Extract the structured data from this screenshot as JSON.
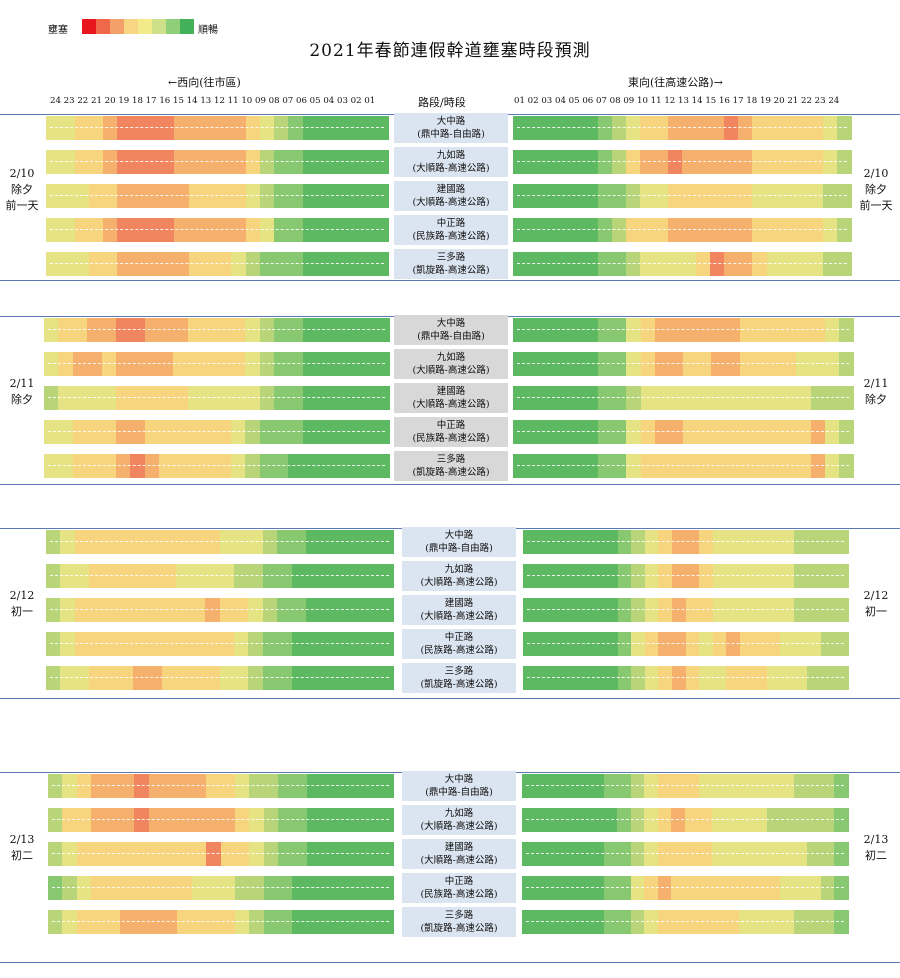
{
  "title": "2021年春節連假幹道壅塞時段預測",
  "legend": {
    "left_label": "壅塞",
    "right_label": "順暢",
    "colors": [
      "#e8161d",
      "#f0684a",
      "#f4a06b",
      "#f8d684",
      "#f3ea8a",
      "#cfe08a",
      "#8fcf7a",
      "#43b05a"
    ]
  },
  "header": {
    "west": "←西向(往市區)",
    "east": "東向(往高速公路)→",
    "road_col": "路段/時段",
    "west_hours": "24 23 22 21 20 19 18 17 16 15 14 13 12 11 10 09 08 07 06 05 04 03 02 01",
    "east_hours": "01 02 03 04 05 06 07 08 09 10 11 12 13 14 15 16 17 18 19 20 21 22 23 24"
  },
  "chart_data": {
    "type": "heatmap",
    "title": "2021年春節連假幹道壅塞時段預測",
    "color_scale": "0=順暢(綠) … 7=壅塞(紅)",
    "roads": [
      {
        "name": "大中路",
        "section": "(鼎中路-自由路)"
      },
      {
        "name": "九如路",
        "section": "(大順路-高速公路)"
      },
      {
        "name": "建國路",
        "section": "(大順路-高速公路)"
      },
      {
        "name": "中正路",
        "section": "(民族路-高速公路)"
      },
      {
        "name": "三多路",
        "section": "(凱旋路-高速公路)"
      }
    ],
    "days": [
      {
        "date": "2/10",
        "label_lines": [
          "除夕",
          "前一天"
        ],
        "west": [
          [
            3,
            3,
            4,
            4,
            5,
            6,
            6,
            6,
            6,
            5,
            5,
            5,
            5,
            5,
            4,
            3,
            2,
            1,
            0,
            0,
            0,
            0,
            0,
            0
          ],
          [
            3,
            3,
            4,
            4,
            5,
            6,
            6,
            6,
            6,
            5,
            5,
            5,
            5,
            5,
            4,
            2,
            1,
            1,
            0,
            0,
            0,
            0,
            0,
            0
          ],
          [
            3,
            3,
            3,
            4,
            4,
            5,
            5,
            5,
            5,
            5,
            4,
            4,
            4,
            4,
            3,
            2,
            1,
            1,
            0,
            0,
            0,
            0,
            0,
            0
          ],
          [
            3,
            3,
            4,
            4,
            5,
            6,
            6,
            6,
            6,
            5,
            5,
            5,
            5,
            5,
            4,
            3,
            1,
            1,
            0,
            0,
            0,
            0,
            0,
            0
          ],
          [
            3,
            3,
            3,
            4,
            4,
            5,
            5,
            5,
            5,
            5,
            4,
            4,
            4,
            3,
            2,
            1,
            1,
            1,
            0,
            0,
            0,
            0,
            0,
            0
          ]
        ],
        "east": [
          [
            0,
            0,
            0,
            0,
            0,
            0,
            1,
            2,
            3,
            4,
            4,
            5,
            5,
            5,
            5,
            6,
            5,
            4,
            4,
            4,
            4,
            4,
            3,
            2
          ],
          [
            0,
            0,
            0,
            0,
            0,
            0,
            1,
            2,
            4,
            5,
            5,
            6,
            5,
            5,
            5,
            5,
            5,
            4,
            4,
            4,
            4,
            4,
            3,
            2
          ],
          [
            0,
            0,
            0,
            0,
            0,
            0,
            1,
            1,
            2,
            3,
            3,
            4,
            4,
            4,
            4,
            4,
            4,
            3,
            3,
            3,
            3,
            3,
            2,
            2
          ],
          [
            0,
            0,
            0,
            0,
            0,
            0,
            1,
            2,
            4,
            4,
            4,
            5,
            5,
            5,
            5,
            5,
            5,
            4,
            4,
            4,
            4,
            4,
            3,
            2
          ],
          [
            0,
            0,
            0,
            0,
            0,
            0,
            1,
            1,
            2,
            3,
            3,
            3,
            3,
            4,
            6,
            5,
            5,
            4,
            3,
            3,
            3,
            3,
            2,
            2
          ]
        ]
      },
      {
        "date": "2/11",
        "label_lines": [
          "除夕"
        ],
        "west": [
          [
            3,
            4,
            4,
            5,
            5,
            6,
            6,
            5,
            5,
            5,
            4,
            4,
            4,
            4,
            3,
            2,
            1,
            1,
            0,
            0,
            0,
            0,
            0,
            0
          ],
          [
            3,
            4,
            5,
            5,
            4,
            5,
            5,
            5,
            5,
            4,
            4,
            4,
            4,
            4,
            3,
            2,
            1,
            1,
            0,
            0,
            0,
            0,
            0,
            0
          ],
          [
            2,
            3,
            3,
            3,
            3,
            4,
            4,
            4,
            4,
            4,
            3,
            3,
            3,
            3,
            3,
            2,
            1,
            1,
            0,
            0,
            0,
            0,
            0,
            0
          ],
          [
            3,
            3,
            4,
            4,
            4,
            5,
            5,
            4,
            4,
            4,
            4,
            4,
            4,
            3,
            2,
            1,
            1,
            1,
            0,
            0,
            0,
            0,
            0,
            0
          ],
          [
            3,
            3,
            4,
            4,
            4,
            5,
            6,
            5,
            4,
            4,
            4,
            4,
            4,
            3,
            2,
            1,
            1,
            0,
            0,
            0,
            0,
            0,
            0,
            0
          ]
        ],
        "east": [
          [
            0,
            0,
            0,
            0,
            0,
            0,
            1,
            1,
            3,
            4,
            5,
            5,
            5,
            5,
            5,
            5,
            4,
            4,
            4,
            4,
            4,
            4,
            3,
            2
          ],
          [
            0,
            0,
            0,
            0,
            0,
            0,
            1,
            1,
            3,
            4,
            5,
            5,
            4,
            4,
            5,
            5,
            4,
            4,
            4,
            4,
            3,
            3,
            3,
            2
          ],
          [
            0,
            0,
            0,
            0,
            0,
            0,
            1,
            1,
            2,
            3,
            3,
            3,
            3,
            3,
            3,
            3,
            3,
            3,
            3,
            3,
            3,
            2,
            2,
            2
          ],
          [
            0,
            0,
            0,
            0,
            0,
            0,
            1,
            1,
            3,
            4,
            5,
            5,
            4,
            4,
            4,
            4,
            4,
            4,
            4,
            4,
            4,
            5,
            3,
            2
          ],
          [
            0,
            0,
            0,
            0,
            0,
            0,
            1,
            1,
            3,
            4,
            4,
            4,
            4,
            4,
            4,
            4,
            4,
            4,
            4,
            4,
            4,
            5,
            3,
            2
          ]
        ]
      },
      {
        "date": "2/12",
        "label_lines": [
          "初一"
        ],
        "west": [
          [
            2,
            3,
            4,
            4,
            4,
            4,
            4,
            4,
            4,
            4,
            4,
            4,
            3,
            3,
            3,
            2,
            1,
            1,
            0,
            0,
            0,
            0,
            0,
            0
          ],
          [
            2,
            3,
            3,
            4,
            4,
            4,
            4,
            4,
            4,
            3,
            3,
            3,
            3,
            2,
            2,
            1,
            1,
            0,
            0,
            0,
            0,
            0,
            0,
            0
          ],
          [
            2,
            3,
            4,
            4,
            4,
            4,
            4,
            4,
            4,
            4,
            4,
            5,
            4,
            4,
            3,
            2,
            1,
            1,
            0,
            0,
            0,
            0,
            0,
            0
          ],
          [
            2,
            3,
            4,
            4,
            4,
            4,
            4,
            4,
            4,
            4,
            4,
            4,
            4,
            3,
            2,
            1,
            1,
            0,
            0,
            0,
            0,
            0,
            0,
            0
          ],
          [
            2,
            3,
            3,
            4,
            4,
            4,
            5,
            5,
            4,
            4,
            4,
            4,
            3,
            3,
            2,
            1,
            1,
            0,
            0,
            0,
            0,
            0,
            0,
            0
          ]
        ],
        "east": [
          [
            0,
            0,
            0,
            0,
            0,
            0,
            0,
            1,
            2,
            3,
            4,
            5,
            5,
            4,
            3,
            3,
            3,
            3,
            3,
            3,
            2,
            2,
            2,
            2
          ],
          [
            0,
            0,
            0,
            0,
            0,
            0,
            0,
            1,
            2,
            3,
            4,
            5,
            5,
            4,
            3,
            3,
            3,
            3,
            3,
            3,
            2,
            2,
            2,
            2
          ],
          [
            0,
            0,
            0,
            0,
            0,
            0,
            0,
            1,
            2,
            3,
            4,
            5,
            4,
            4,
            3,
            3,
            3,
            3,
            3,
            3,
            2,
            2,
            2,
            2
          ],
          [
            0,
            0,
            0,
            0,
            0,
            0,
            0,
            1,
            3,
            4,
            5,
            5,
            4,
            3,
            4,
            5,
            4,
            4,
            4,
            3,
            3,
            3,
            2,
            2
          ],
          [
            0,
            0,
            0,
            0,
            0,
            0,
            0,
            1,
            2,
            3,
            4,
            5,
            4,
            3,
            3,
            4,
            4,
            4,
            3,
            3,
            3,
            2,
            2,
            2
          ]
        ]
      },
      {
        "date": "2/13",
        "label_lines": [
          "初二"
        ],
        "west": [
          [
            2,
            3,
            4,
            5,
            5,
            5,
            6,
            5,
            5,
            5,
            5,
            4,
            4,
            3,
            2,
            2,
            1,
            1,
            0,
            0,
            0,
            0,
            0,
            0
          ],
          [
            2,
            4,
            4,
            5,
            5,
            5,
            6,
            5,
            5,
            5,
            5,
            5,
            5,
            4,
            3,
            2,
            1,
            1,
            0,
            0,
            0,
            0,
            0,
            0
          ],
          [
            2,
            3,
            4,
            4,
            4,
            4,
            4,
            4,
            4,
            4,
            4,
            6,
            4,
            4,
            3,
            2,
            1,
            1,
            0,
            0,
            0,
            0,
            0,
            0
          ],
          [
            1,
            2,
            3,
            4,
            4,
            4,
            4,
            4,
            4,
            4,
            3,
            3,
            3,
            2,
            2,
            1,
            1,
            0,
            0,
            0,
            0,
            0,
            0,
            0
          ],
          [
            2,
            3,
            4,
            4,
            4,
            5,
            5,
            5,
            5,
            4,
            4,
            4,
            4,
            3,
            2,
            1,
            1,
            0,
            0,
            0,
            0,
            0,
            0,
            0
          ]
        ],
        "east": [
          [
            0,
            0,
            0,
            0,
            0,
            0,
            1,
            1,
            2,
            3,
            4,
            4,
            4,
            3,
            3,
            3,
            3,
            3,
            3,
            3,
            2,
            2,
            2,
            1
          ],
          [
            0,
            0,
            0,
            0,
            0,
            0,
            0,
            1,
            2,
            3,
            4,
            5,
            4,
            4,
            3,
            3,
            3,
            3,
            2,
            2,
            2,
            2,
            2,
            1
          ],
          [
            0,
            0,
            0,
            0,
            0,
            0,
            1,
            1,
            2,
            3,
            4,
            4,
            4,
            4,
            3,
            3,
            3,
            3,
            3,
            3,
            3,
            2,
            2,
            1
          ],
          [
            0,
            0,
            0,
            0,
            0,
            0,
            1,
            1,
            3,
            4,
            5,
            4,
            4,
            4,
            4,
            4,
            4,
            4,
            4,
            3,
            3,
            3,
            2,
            1
          ],
          [
            0,
            0,
            0,
            0,
            0,
            0,
            1,
            1,
            2,
            3,
            4,
            4,
            4,
            4,
            4,
            4,
            3,
            3,
            3,
            3,
            2,
            2,
            2,
            1
          ]
        ]
      }
    ]
  }
}
